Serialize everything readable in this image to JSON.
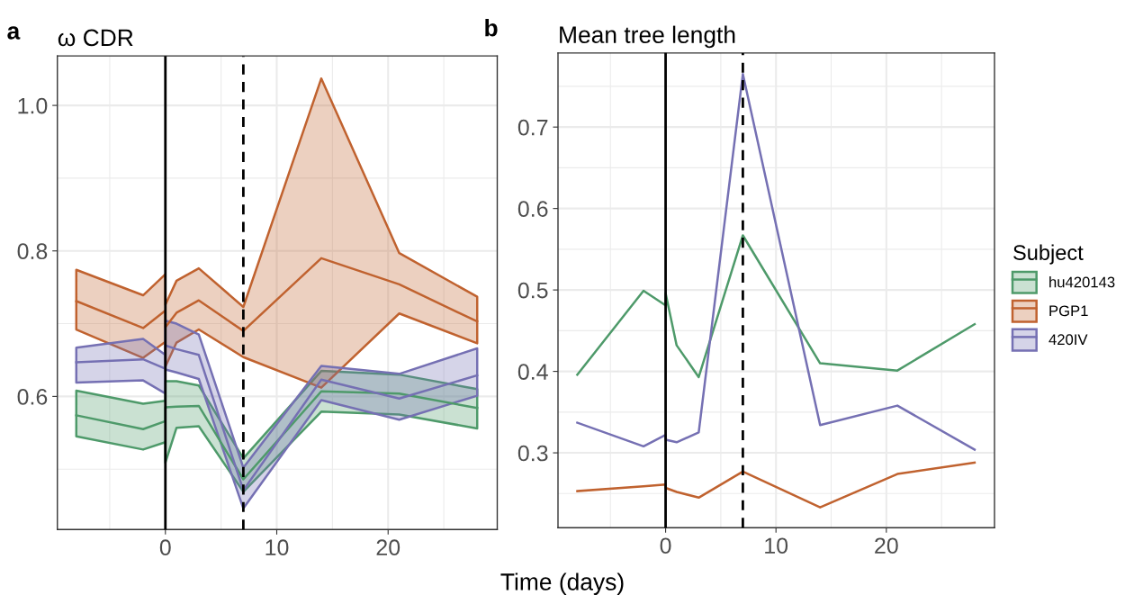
{
  "chart_data": [
    {
      "type": "line",
      "title": "ω CDR",
      "xlabel": "Time (days)",
      "annotations": [
        "a"
      ],
      "legend_title": "Subject",
      "x": [
        -8,
        -2,
        0,
        0,
        1,
        3,
        7,
        14,
        21,
        28
      ],
      "xlim": [
        -9.7,
        29.8
      ],
      "xticks": [
        0,
        10,
        20
      ],
      "ylim": [
        0.417,
        1.068
      ],
      "yticks": [
        0.6,
        0.8,
        {
          "value": 1.0,
          "label": "1.0"
        }
      ],
      "grid": true,
      "legend": "right",
      "ref_lines": [
        {
          "axis": "x",
          "value": 0,
          "color": "#000000",
          "line_style": "solid"
        },
        {
          "axis": "x",
          "value": 7,
          "color": "#000000",
          "line_style": "dashed"
        }
      ],
      "series": [
        {
          "name": "hu420143",
          "color": "#4e9a6a",
          "values": [
            0.574,
            0.555,
            0.566,
            0.585,
            0.586,
            0.587,
            0.486,
            0.607,
            0.604,
            0.584
          ],
          "lower": [
            0.545,
            0.527,
            0.537,
            0.509,
            0.557,
            0.559,
            0.469,
            0.579,
            0.575,
            0.556
          ],
          "upper": [
            0.608,
            0.59,
            0.594,
            0.621,
            0.621,
            0.615,
            0.515,
            0.635,
            0.63,
            0.61
          ]
        },
        {
          "name": "PGP1",
          "color": "#c0622f",
          "values": [
            0.731,
            0.694,
            0.718,
            0.695,
            0.715,
            0.732,
            0.69,
            0.79,
            0.754,
            0.703
          ],
          "lower": [
            0.692,
            0.653,
            0.675,
            0.641,
            0.674,
            0.692,
            0.654,
            0.612,
            0.714,
            0.673
          ],
          "upper": [
            0.774,
            0.739,
            0.768,
            0.726,
            0.759,
            0.776,
            0.723,
            1.037,
            0.797,
            0.737
          ]
        },
        {
          "name": "420IV",
          "color": "#7570b3",
          "values": [
            0.647,
            0.651,
            0.638,
            0.67,
            0.665,
            0.657,
            0.471,
            0.623,
            0.597,
            0.629
          ],
          "lower": [
            0.619,
            0.622,
            0.604,
            0.637,
            0.633,
            0.624,
            0.446,
            0.595,
            0.568,
            0.601
          ],
          "upper": [
            0.667,
            0.679,
            0.657,
            0.704,
            0.7,
            0.685,
            0.502,
            0.642,
            0.631,
            0.666
          ]
        }
      ]
    },
    {
      "type": "line",
      "title": "Mean tree length",
      "annotations": [
        "b"
      ],
      "x": [
        -8,
        -2,
        0,
        0,
        1,
        3,
        7,
        14,
        21,
        28
      ],
      "xlim": [
        -9.75,
        29.8
      ],
      "xticks": [
        0,
        10,
        20
      ],
      "ylim": [
        0.208,
        0.791
      ],
      "yticks": [
        0.3,
        0.4,
        0.5,
        0.6,
        0.7
      ],
      "grid": true,
      "ref_lines": [
        {
          "axis": "x",
          "value": 0,
          "color": "#000000",
          "line_style": "solid"
        },
        {
          "axis": "x",
          "value": 7,
          "color": "#000000",
          "line_style": "dashed"
        }
      ],
      "series": [
        {
          "color": "#4e9a6a",
          "values": [
            0.396,
            0.499,
            0.481,
            0.496,
            0.432,
            0.393,
            0.567,
            0.41,
            0.401,
            0.458
          ]
        },
        {
          "color": "#c0622f",
          "values": [
            0.253,
            0.259,
            0.261,
            0.257,
            0.252,
            0.245,
            0.277,
            0.233,
            0.274,
            0.288
          ]
        },
        {
          "color": "#7570b3",
          "values": [
            0.337,
            0.308,
            0.322,
            0.316,
            0.313,
            0.325,
            0.765,
            0.334,
            0.358,
            0.304
          ]
        }
      ]
    }
  ]
}
